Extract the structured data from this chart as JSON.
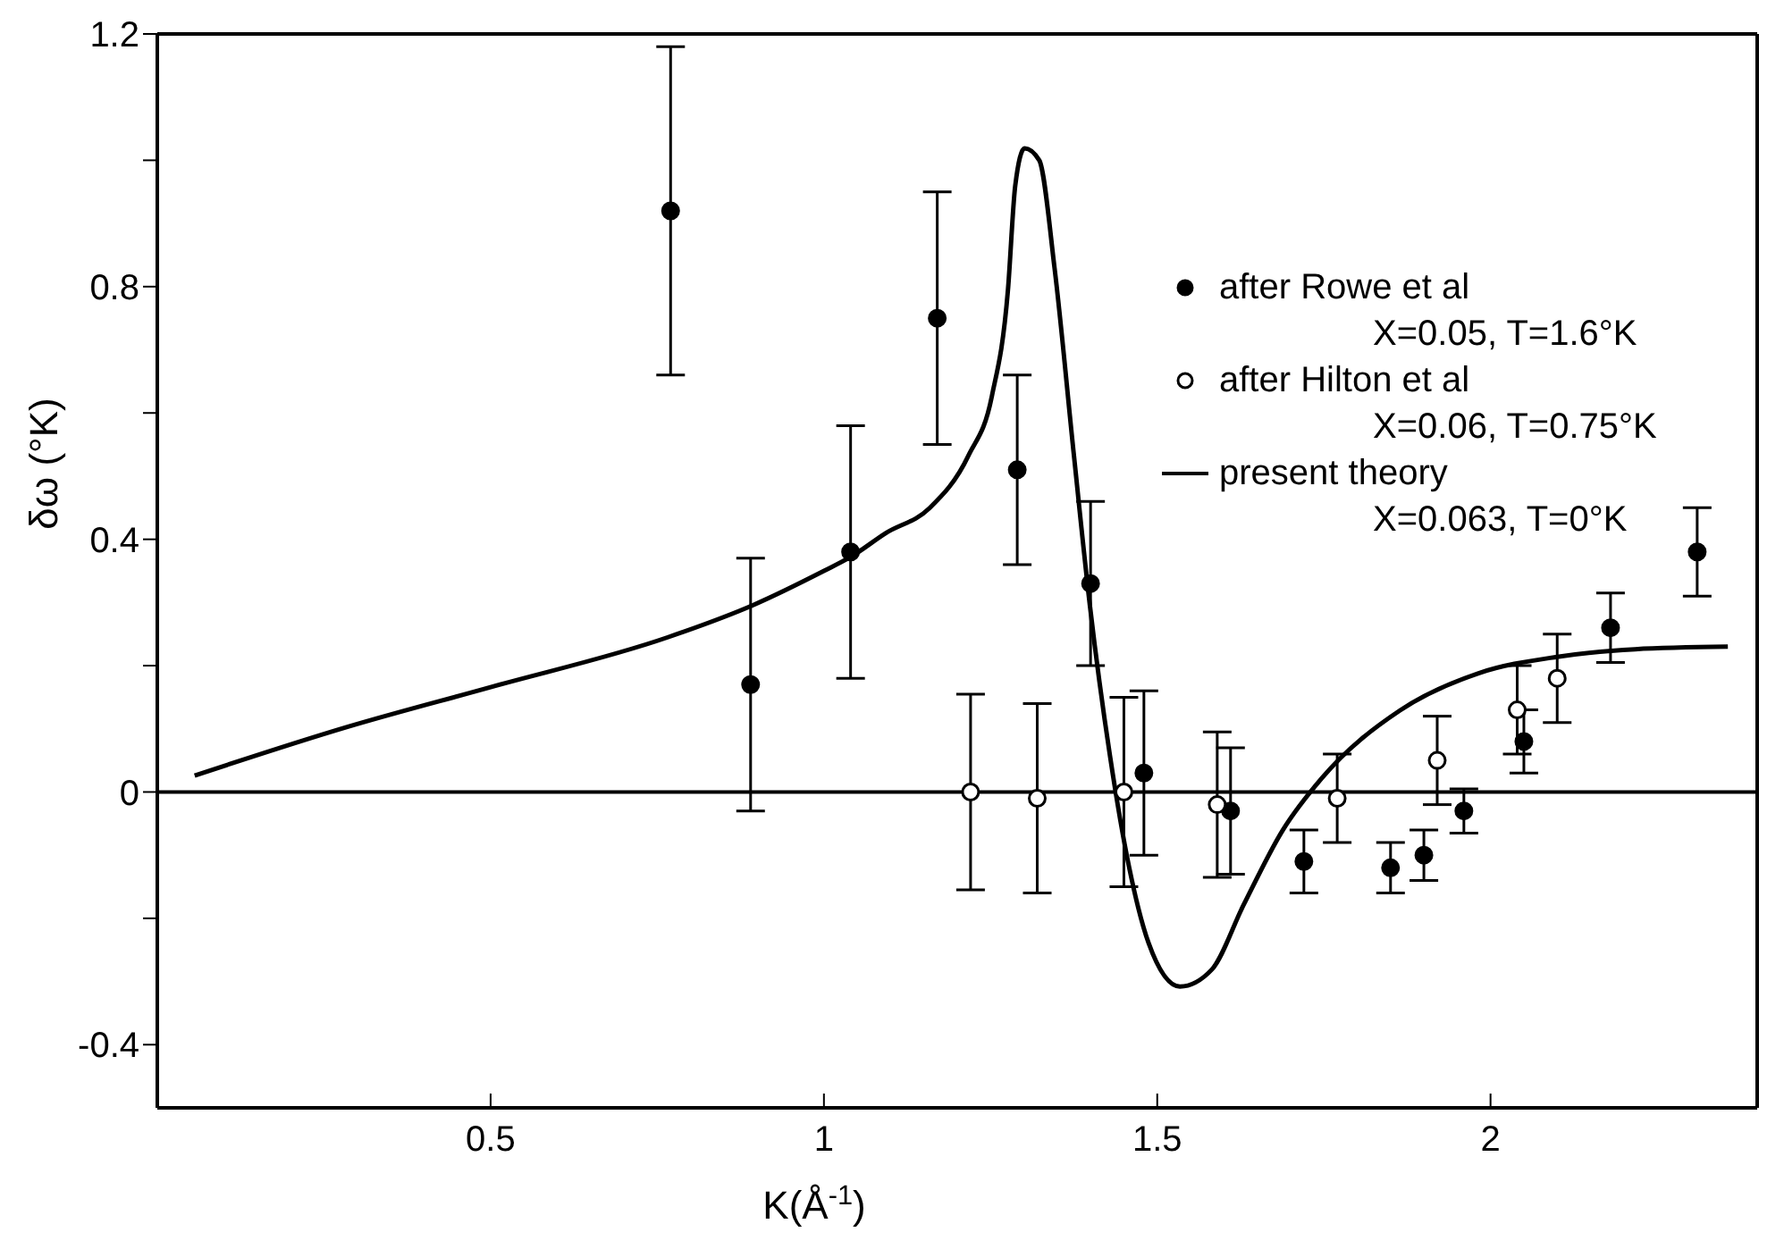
{
  "chart_data": {
    "type": "scatter",
    "xlabel": "K(Å$^{-1}$)",
    "ylabel": "δω  (°K)",
    "xlim": [
      0,
      2.4
    ],
    "xticks": [
      0.5,
      1.0,
      1.5,
      2.0
    ],
    "ylim": [
      -0.5,
      1.2
    ],
    "yticks": [
      {
        "value": -0.4,
        "label": "-0.4"
      },
      {
        "value": -0.2,
        "label": null
      },
      0,
      {
        "value": 0.2,
        "label": null
      },
      0.4,
      {
        "value": 0.6,
        "label": null
      },
      0.8,
      {
        "value": 1.0,
        "label": null
      },
      1.2
    ],
    "ref_lines": [
      {
        "axis": "y",
        "value": 0,
        "color": "#000000"
      }
    ],
    "legend": "top right",
    "grid": false,
    "marker": "circle",
    "series": [
      {
        "name": "after Rowe et al\nX=0.05, T=1.6°K",
        "type": "scatter",
        "color": "#000000",
        "x": [
          0.77,
          0.89,
          1.04,
          1.17,
          1.29,
          1.4,
          1.48,
          1.61,
          1.72,
          1.85,
          1.9,
          1.96,
          2.05,
          2.18,
          2.31
        ],
        "values": [
          0.92,
          0.17,
          0.38,
          0.75,
          0.51,
          0.33,
          0.03,
          -0.03,
          -0.11,
          -0.12,
          -0.1,
          -0.03,
          0.08,
          0.26,
          0.38
        ],
        "errors": [
          0.26,
          0.2,
          0.2,
          0.2,
          0.15,
          0.13,
          0.13,
          0.1,
          0.05,
          0.04,
          0.04,
          0.035,
          0.05,
          0.055,
          0.07
        ]
      },
      {
        "name": "after Hilton et al\nX=0.06, T=0.75°K",
        "type": "scatter",
        "color": "#ffffff",
        "x": [
          1.22,
          1.32,
          1.45,
          1.59,
          1.77,
          1.92,
          2.04,
          2.1
        ],
        "values": [
          0,
          -0.01,
          0,
          -0.02,
          -0.01,
          0.05,
          0.13,
          0.18
        ],
        "errors": [
          0.155,
          0.15,
          0.15,
          0.115,
          0.07,
          0.07,
          0.07,
          0.07
        ]
      },
      {
        "name": "present theory\nX=0.063, T=0°K",
        "type": "line",
        "color": "#000000",
        "marker": "none",
        "line_style": "solid",
        "x": [
          0.056,
          0.285,
          0.5,
          0.766,
          0.894,
          1.0,
          1.04,
          1.093,
          1.158,
          1.217,
          1.252,
          1.276,
          1.287,
          1.301,
          1.323,
          1.346,
          1.375,
          1.399,
          1.429,
          1.458,
          1.487,
          1.534,
          1.582,
          1.629,
          1.688,
          1.747,
          1.864,
          1.982,
          2.1,
          2.217,
          2.356
        ],
        "values": [
          0.026,
          0.103,
          0.166,
          0.245,
          0.296,
          0.35,
          0.372,
          0.41,
          0.449,
          0.533,
          0.627,
          0.794,
          0.96,
          1.019,
          1.0,
          0.829,
          0.533,
          0.295,
          0.058,
          -0.12,
          -0.239,
          -0.308,
          -0.281,
          -0.18,
          -0.061,
          0.022,
          0.129,
          0.188,
          0.214,
          0.226,
          0.23
        ]
      }
    ]
  }
}
